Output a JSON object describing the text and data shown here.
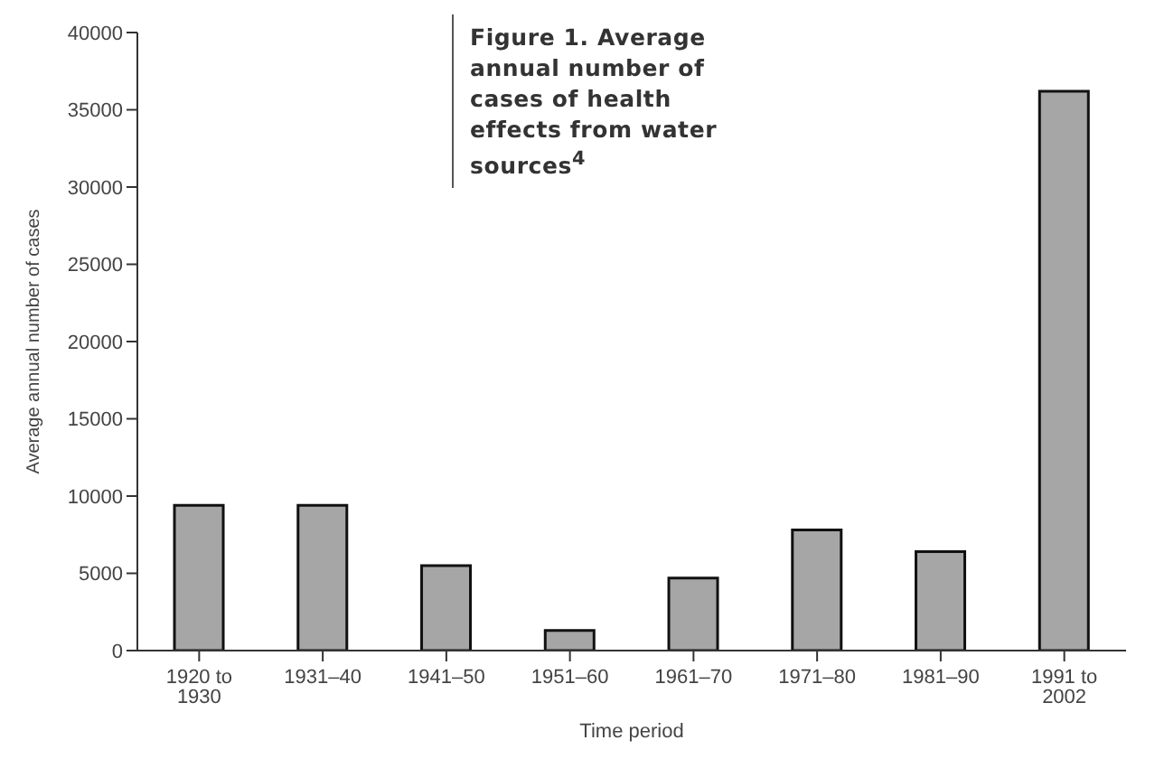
{
  "chart_data": {
    "type": "bar",
    "title": "Figure 1. Average annual number of cases of health effects from water sources$^{4}$",
    "xlabel": "Time period",
    "ylabel": "Average annual number of cases",
    "categories": [
      "1920 to 1930",
      "1931–40",
      "1941–50",
      "1951–60",
      "1961–70",
      "1971–80",
      "1981–90",
      "1991 to 2002"
    ],
    "values": [
      9400,
      9400,
      5500,
      1300,
      4700,
      7800,
      6400,
      36200
    ],
    "color": "#a6a6a6",
    "ylim": [
      0,
      40000
    ],
    "yticks": [
      0,
      5000,
      10000,
      15000,
      20000,
      25000,
      30000,
      35000,
      40000
    ],
    "grid": false
  }
}
